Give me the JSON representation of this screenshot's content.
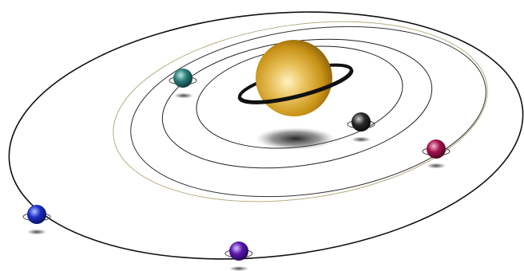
{
  "scene": {
    "background": "#ffffff",
    "central_body": {
      "colors": {
        "highlight": "#fff2c0",
        "mid": "#d9a522",
        "dark": "#7a5408",
        "ring": "#111111"
      }
    },
    "orbits": [
      {
        "id": "orbit-inner",
        "stroke": "#222222"
      },
      {
        "id": "orbit-second",
        "stroke": "#222222"
      },
      {
        "id": "orbit-third",
        "stroke": "#b5ad82"
      },
      {
        "id": "orbit-fourth",
        "stroke": "#333333"
      },
      {
        "id": "orbit-outer",
        "stroke": "#111111"
      }
    ],
    "planets": [
      {
        "id": "teal-planet",
        "color": "#2a7e7a",
        "highlight": "#bde9e5"
      },
      {
        "id": "black-planet",
        "color": "#2b2b2b",
        "highlight": "#cfcfcf"
      },
      {
        "id": "magenta-planet",
        "color": "#a3124f",
        "highlight": "#f7b9d6"
      },
      {
        "id": "blue-planet",
        "color": "#1b2ec4",
        "highlight": "#b9c2ff"
      },
      {
        "id": "purple-planet",
        "color": "#5a16ad",
        "highlight": "#d9c2ff"
      }
    ]
  }
}
